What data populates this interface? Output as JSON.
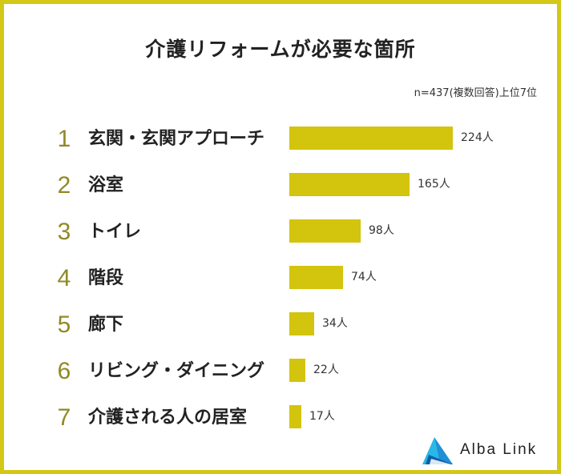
{
  "chart_data": {
    "type": "bar",
    "orientation": "horizontal",
    "title": "介護リフォームが必要な箇所",
    "note": "n=437(複数回答)上位7位",
    "unit": "人",
    "xlim": [
      0,
      224
    ],
    "grid": false,
    "ranks": [
      "1",
      "2",
      "3",
      "4",
      "5",
      "6",
      "7"
    ],
    "categories": [
      "玄関・玄関アプローチ",
      "浴室",
      "トイレ",
      "階段",
      "廊下",
      "リビング・ダイニング",
      "介護される人の居室"
    ],
    "values": [
      224,
      165,
      98,
      74,
      34,
      22,
      17
    ],
    "value_labels": [
      "224人",
      "165人",
      "98人",
      "74人",
      "34人",
      "22人",
      "17人"
    ],
    "colors": {
      "bar": "#d3c40d",
      "rank": "#8f8a24",
      "frame": "#d3c718"
    }
  },
  "brand": {
    "name": "Alba Link",
    "logo_icon": "triangle-logo-icon",
    "colors": [
      "#1f8fd6",
      "#27b8e8",
      "#0f5fa8"
    ]
  }
}
